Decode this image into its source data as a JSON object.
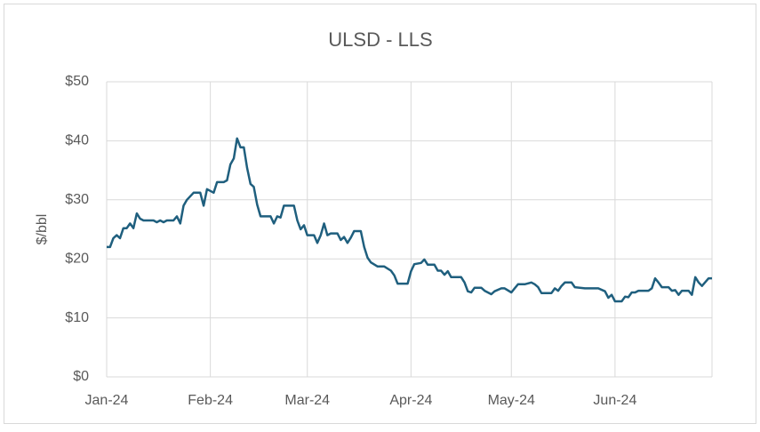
{
  "chart_data": {
    "type": "line",
    "title": "ULSD - LLS",
    "y_label": "$/bbl",
    "x": [
      0,
      1,
      2,
      3,
      4,
      5,
      6,
      7,
      8,
      9,
      10,
      11,
      14,
      15,
      16,
      17,
      18,
      20,
      21,
      22,
      23,
      24,
      26,
      28,
      29,
      30,
      32,
      33,
      35,
      36,
      37,
      38,
      39,
      40,
      41,
      42,
      43,
      44,
      45,
      46,
      49,
      50,
      51,
      52,
      53,
      56,
      57,
      58,
      59,
      60,
      62,
      63,
      64,
      65,
      66,
      67,
      69,
      70,
      71,
      72,
      73,
      74,
      76,
      77,
      78,
      79,
      81,
      83,
      85,
      86,
      87,
      90,
      91,
      92,
      94,
      95,
      96,
      98,
      99,
      100,
      101,
      102,
      103,
      106,
      107,
      108,
      109,
      110,
      112,
      113,
      115,
      116,
      118,
      119,
      121,
      122,
      123,
      125,
      127,
      128,
      129,
      130,
      133,
      134,
      135,
      136,
      137,
      139,
      140,
      143,
      145,
      147,
      149,
      150,
      151,
      152,
      154,
      155,
      156,
      157,
      158,
      159,
      162,
      163,
      164,
      165,
      166,
      168,
      169,
      170,
      171,
      172,
      174,
      175,
      176,
      177,
      178,
      180,
      181
    ],
    "series": [
      {
        "name": "ULSD - LLS",
        "color": "#1f5f7e",
        "values": [
          22,
          22,
          23.5,
          24,
          23.5,
          25.2,
          25.2,
          26,
          25.2,
          27.7,
          26.8,
          26.5,
          26.5,
          26.2,
          26.5,
          26.2,
          26.5,
          26.5,
          27.2,
          26,
          29,
          30,
          31.2,
          31.2,
          29,
          31.8,
          31.2,
          33,
          33,
          33.3,
          36,
          37,
          40.4,
          38.9,
          38.9,
          35.4,
          32.7,
          32.2,
          29.2,
          27.2,
          27.2,
          26,
          27.2,
          27,
          29,
          29,
          26.5,
          25,
          25.7,
          24,
          24,
          22.7,
          24,
          26,
          24,
          24.3,
          24.3,
          23.2,
          23.7,
          22.7,
          23.6,
          24.7,
          24.7,
          22,
          20.2,
          19.4,
          18.7,
          18.7,
          18,
          17.2,
          15.8,
          15.8,
          17.9,
          19.1,
          19.3,
          19.9,
          19,
          19,
          18,
          18,
          17.3,
          17.9,
          16.9,
          16.9,
          16,
          14.5,
          14.3,
          15.1,
          15.1,
          14.6,
          14,
          14.5,
          15,
          15,
          14.3,
          15,
          15.7,
          15.7,
          16,
          15.7,
          15.2,
          14.2,
          14.2,
          15,
          14.6,
          15.4,
          16,
          16,
          15.2,
          15,
          15,
          15,
          14.5,
          13.4,
          13.9,
          12.8,
          12.8,
          13.6,
          13.5,
          14.3,
          14.3,
          14.6,
          14.6,
          15,
          16.7,
          16,
          15.2,
          15.2,
          14.6,
          14.7,
          13.9,
          14.6,
          14.6,
          13.9,
          16.9,
          16,
          15.4,
          16.7,
          16.7
        ]
      }
    ],
    "xlim": [
      0,
      181
    ],
    "xticks": [
      {
        "value": 0,
        "label": "Jan-24"
      },
      {
        "value": 31,
        "label": "Feb-24"
      },
      {
        "value": 60,
        "label": "Mar-24"
      },
      {
        "value": 91,
        "label": "Apr-24"
      },
      {
        "value": 121,
        "label": "May-24"
      },
      {
        "value": 152,
        "label": "Jun-24"
      }
    ],
    "ylim": [
      0,
      50
    ],
    "yticks": [
      {
        "value": 0,
        "label": "$0"
      },
      {
        "value": 10,
        "label": "$10"
      },
      {
        "value": 20,
        "label": "$20"
      },
      {
        "value": 30,
        "label": "$30"
      },
      {
        "value": 40,
        "label": "$40"
      },
      {
        "value": 50,
        "label": "$50"
      }
    ],
    "grid": true
  }
}
